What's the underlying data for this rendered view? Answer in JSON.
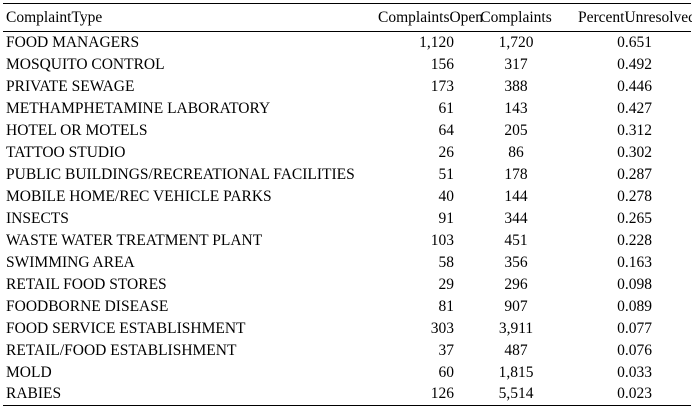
{
  "table": {
    "columns": [
      "ComplaintType",
      "ComplaintsOpen",
      "Complaints",
      "PercentUnresolved"
    ],
    "rows": [
      [
        "FOOD MANAGERS",
        "1,120",
        "1,720",
        "0.651"
      ],
      [
        "MOSQUITO CONTROL",
        "156",
        "317",
        "0.492"
      ],
      [
        "PRIVATE SEWAGE",
        "173",
        "388",
        "0.446"
      ],
      [
        "METHAMPHETAMINE LABORATORY",
        "61",
        "143",
        "0.427"
      ],
      [
        "HOTEL OR MOTELS",
        "64",
        "205",
        "0.312"
      ],
      [
        "TATTOO STUDIO",
        "26",
        "86",
        "0.302"
      ],
      [
        "PUBLIC BUILDINGS/RECREATIONAL FACILITIES",
        "51",
        "178",
        "0.287"
      ],
      [
        "MOBILE HOME/REC VEHICLE PARKS",
        "40",
        "144",
        "0.278"
      ],
      [
        "INSECTS",
        "91",
        "344",
        "0.265"
      ],
      [
        "WASTE WATER TREATMENT PLANT",
        "103",
        "451",
        "0.228"
      ],
      [
        "SWIMMING AREA",
        "58",
        "356",
        "0.163"
      ],
      [
        "RETAIL FOOD STORES",
        "29",
        "296",
        "0.098"
      ],
      [
        "FOODBORNE DISEASE",
        "81",
        "907",
        "0.089"
      ],
      [
        "FOOD SERVICE ESTABLISHMENT",
        "303",
        "3,911",
        "0.077"
      ],
      [
        "RETAIL/FOOD ESTABLISHMENT",
        "37",
        "487",
        "0.076"
      ],
      [
        "MOLD",
        "60",
        "1,815",
        "0.033"
      ],
      [
        "RABIES",
        "126",
        "5,514",
        "0.023"
      ]
    ]
  }
}
